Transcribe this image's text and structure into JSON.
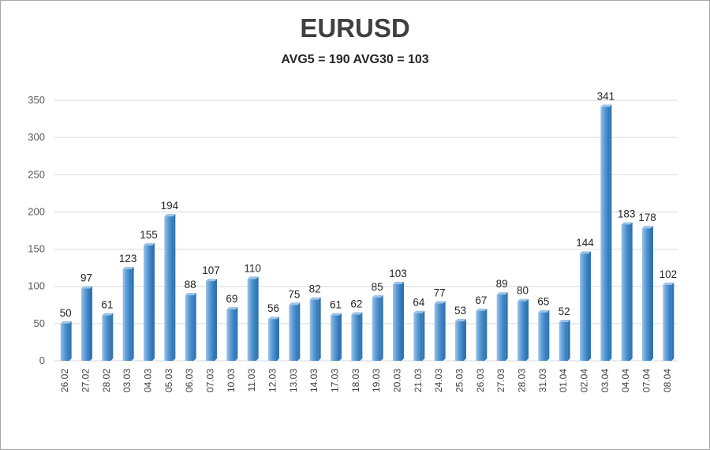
{
  "chart_data": {
    "type": "bar",
    "title": "EURUSD",
    "subtitle": "AVG5 = 190 AVG30 = 103",
    "categories": [
      "26.02",
      "27.02",
      "28.02",
      "03.03",
      "04.03",
      "05.03",
      "06.03",
      "07.03",
      "10.03",
      "11.03",
      "12.03",
      "13.03",
      "14.03",
      "17.03",
      "18.03",
      "19.03",
      "20.03",
      "21.03",
      "24.03",
      "25.03",
      "26.03",
      "27.03",
      "28.03",
      "31.03",
      "01.04",
      "02.04",
      "03.04",
      "04.04",
      "07.04",
      "08.04"
    ],
    "values": [
      50,
      97,
      61,
      123,
      155,
      194,
      88,
      107,
      69,
      110,
      56,
      75,
      82,
      61,
      62,
      85,
      103,
      64,
      77,
      53,
      67,
      89,
      80,
      65,
      52,
      144,
      341,
      183,
      178,
      102
    ],
    "yticks": [
      0,
      50,
      100,
      150,
      200,
      250,
      300,
      350
    ],
    "ylim": [
      0,
      350
    ],
    "grid": true,
    "data_labels": true,
    "colors": {
      "bar": "#5b9bd5",
      "bar_light": "#9cc3e8",
      "bar_dark": "#2e75b6",
      "grid": "#d9d9d9"
    }
  }
}
